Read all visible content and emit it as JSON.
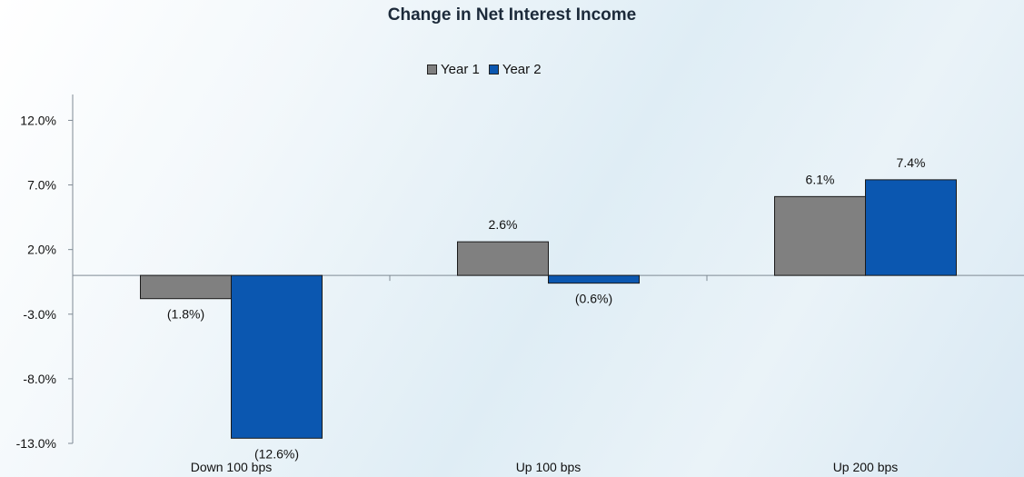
{
  "chart_data": {
    "type": "bar",
    "title": "Change in Net Interest Income",
    "xlabel": "",
    "ylabel": "",
    "categories": [
      "Down 100 bps",
      "Up 100 bps",
      "Up 200 bps"
    ],
    "series": [
      {
        "name": "Year 1",
        "values": [
          -1.8,
          2.6,
          6.1
        ],
        "labels": [
          "(1.8%)",
          "2.6%",
          "6.1%"
        ],
        "color": "#808080"
      },
      {
        "name": "Year 2",
        "values": [
          -12.6,
          -0.6,
          7.4
        ],
        "labels": [
          "(12.6%)",
          "(0.6%)",
          "7.4%"
        ],
        "color": "#0b57b0"
      }
    ],
    "ylim": [
      -13.0,
      14.0
    ],
    "yticks": [
      12.0,
      7.0,
      2.0,
      -3.0,
      -8.0,
      -13.0
    ],
    "ytick_labels": [
      "12.0%",
      "7.0%",
      "2.0%",
      "-3.0%",
      "-8.0%",
      "-13.0%"
    ],
    "legend_position": "top-center",
    "grid": false
  }
}
